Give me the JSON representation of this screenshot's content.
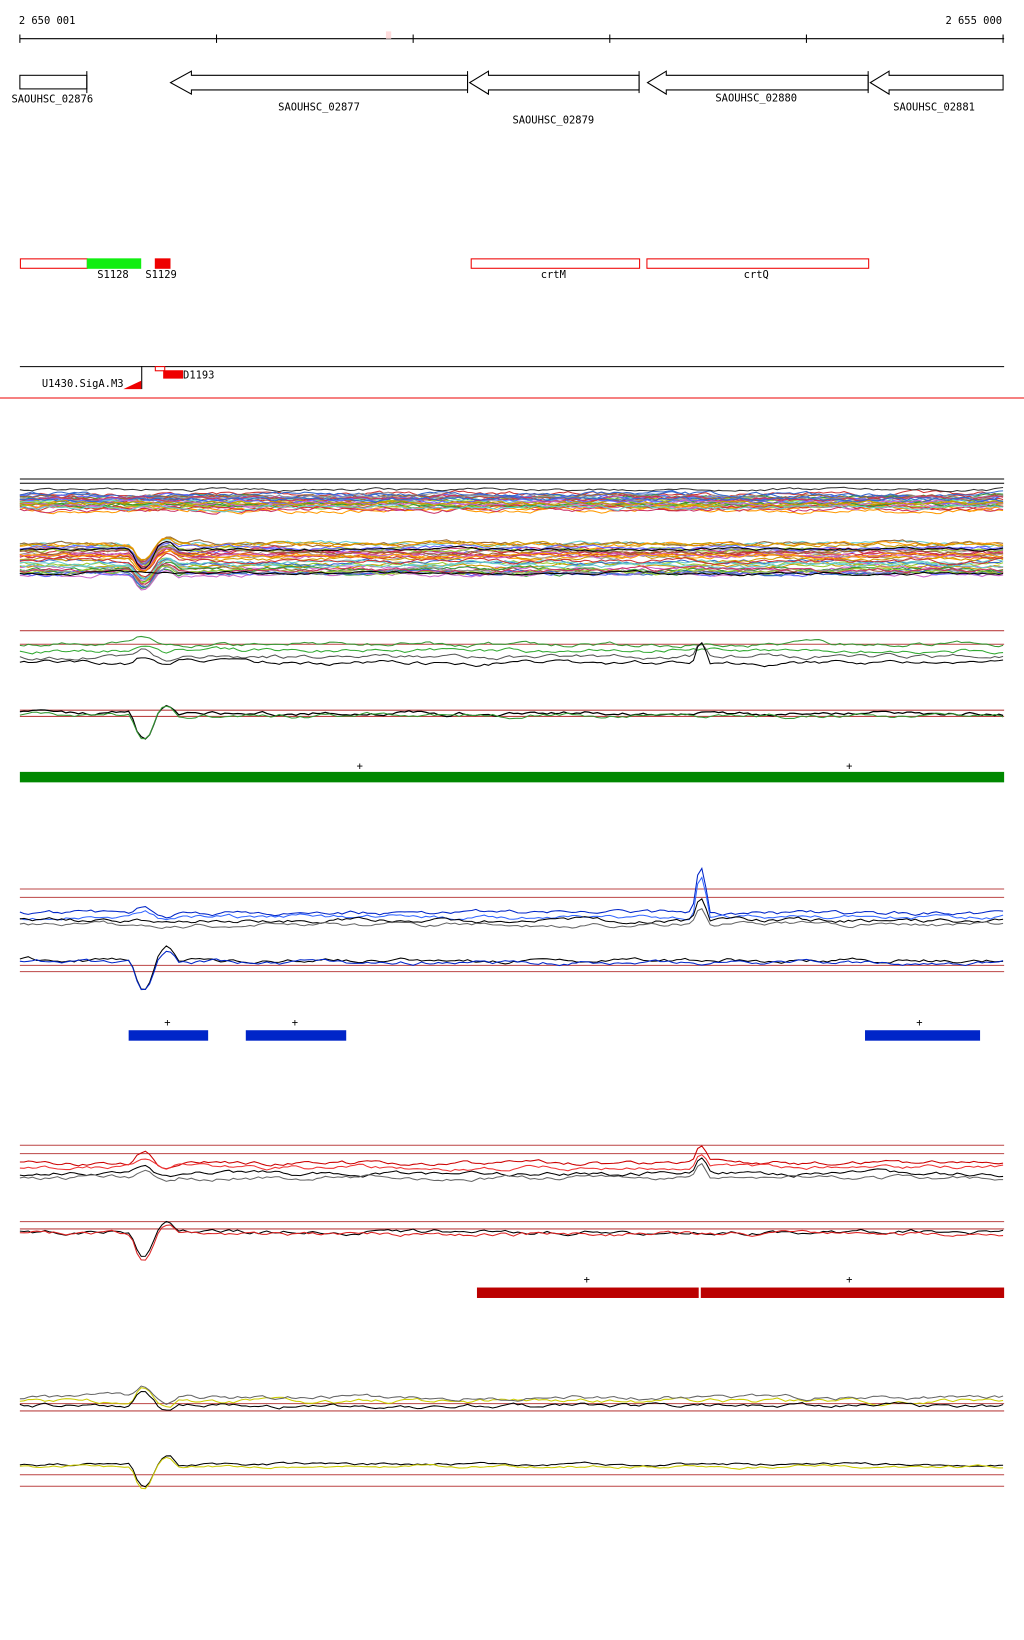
{
  "ruler": {
    "start": "2 650 001",
    "end": "2 655 000"
  },
  "genes": [
    {
      "label": "SAOUHSC_02876"
    },
    {
      "label": "SAOUHSC_02877"
    },
    {
      "label": "SAOUHSC_02879"
    },
    {
      "label": "SAOUHSC_02880"
    },
    {
      "label": "SAOUHSC_02881"
    }
  ],
  "features": [
    {
      "label": "S1128"
    },
    {
      "label": "S1129"
    },
    {
      "label": "crtM"
    },
    {
      "label": "crtQ"
    }
  ],
  "regulation": [
    {
      "label": "U1430.SigA.M3"
    },
    {
      "label": "D1193"
    }
  ],
  "track_markers": {
    "green": [
      "+",
      "+"
    ],
    "blue": [
      "+",
      "+",
      "+"
    ],
    "red": [
      "+",
      "+"
    ]
  }
}
